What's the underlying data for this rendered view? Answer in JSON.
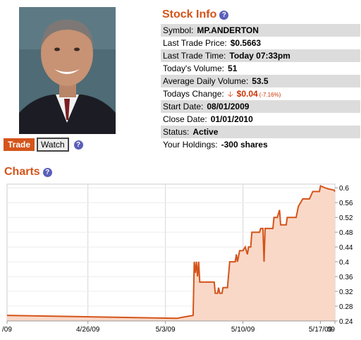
{
  "buttons": {
    "trade": "Trade",
    "watch": "Watch",
    "help": "?"
  },
  "stock_info": {
    "title": "Stock Info",
    "rows": [
      {
        "label": "Symbol:",
        "value": "MP.ANDERTON"
      },
      {
        "label": "Last Trade Price:",
        "value": "$0.5663"
      },
      {
        "label": "Last Trade Time:",
        "value": "Today 07:33pm"
      },
      {
        "label": "Today's Volume:",
        "value": "51"
      },
      {
        "label": "Average Daily Volume:",
        "value": "53.5"
      },
      {
        "label": "Todays Change:",
        "value": "$0.04",
        "pct": "(-7.16%)"
      },
      {
        "label": "Start Date:",
        "value": "08/01/2009"
      },
      {
        "label": "Close Date:",
        "value": "01/01/2010"
      },
      {
        "label": "Status:",
        "value": "Active"
      },
      {
        "label": "Your Holdings:",
        "value": "-300 shares"
      }
    ]
  },
  "charts": {
    "title": "Charts"
  },
  "colors": {
    "accent": "#d4541a",
    "fill": "#f9d8c8",
    "help": "#5a5fb8"
  },
  "icons": {
    "change_direction": "down-arrow-icon"
  },
  "chart_data": {
    "type": "area",
    "x_ticks": [
      "/09",
      "4/26/09",
      "5/3/09",
      "5/10/09",
      "5/17/09",
      "09"
    ],
    "y_ticks": [
      "0.24",
      "0.28",
      "0.32",
      "0.36",
      "0.4",
      "0.44",
      "0.48",
      "0.52",
      "0.56",
      "0.6"
    ],
    "ylim": [
      0.24,
      0.61
    ],
    "grid": true,
    "series": [
      {
        "points": [
          [
            -0.3,
            0.255
          ],
          [
            15,
            0.247
          ],
          [
            16.5,
            0.255
          ],
          [
            16.6,
            0.4
          ],
          [
            16.7,
            0.37
          ],
          [
            16.8,
            0.4
          ],
          [
            16.9,
            0.36
          ],
          [
            17.0,
            0.4
          ],
          [
            17.1,
            0.345
          ],
          [
            17.4,
            0.345
          ],
          [
            18.4,
            0.345
          ],
          [
            18.5,
            0.315
          ],
          [
            18.7,
            0.315
          ],
          [
            18.8,
            0.33
          ],
          [
            18.9,
            0.315
          ],
          [
            19.1,
            0.315
          ],
          [
            19.2,
            0.33
          ],
          [
            19.6,
            0.33
          ],
          [
            19.8,
            0.4
          ],
          [
            20.3,
            0.4
          ],
          [
            20.4,
            0.42
          ],
          [
            20.5,
            0.4
          ],
          [
            20.7,
            0.43
          ],
          [
            21.0,
            0.43
          ],
          [
            21.2,
            0.44
          ],
          [
            21.4,
            0.42
          ],
          [
            21.5,
            0.44
          ],
          [
            21.7,
            0.44
          ],
          [
            21.8,
            0.48
          ],
          [
            22.5,
            0.48
          ],
          [
            22.6,
            0.49
          ],
          [
            22.8,
            0.49
          ],
          [
            22.9,
            0.4
          ],
          [
            23.0,
            0.49
          ],
          [
            23.7,
            0.49
          ],
          [
            23.8,
            0.52
          ],
          [
            24.1,
            0.52
          ],
          [
            24.3,
            0.54
          ],
          [
            24.4,
            0.5
          ],
          [
            24.9,
            0.5
          ],
          [
            25.0,
            0.52
          ],
          [
            25.8,
            0.52
          ],
          [
            26.0,
            0.55
          ],
          [
            26.4,
            0.57
          ],
          [
            27.0,
            0.57
          ],
          [
            27.3,
            0.59
          ],
          [
            27.9,
            0.59
          ],
          [
            28.0,
            0.605
          ],
          [
            28.4,
            0.6
          ],
          [
            28.7,
            0.597
          ],
          [
            29.2,
            0.594
          ],
          [
            29.3,
            0.59
          ]
        ]
      }
    ]
  }
}
